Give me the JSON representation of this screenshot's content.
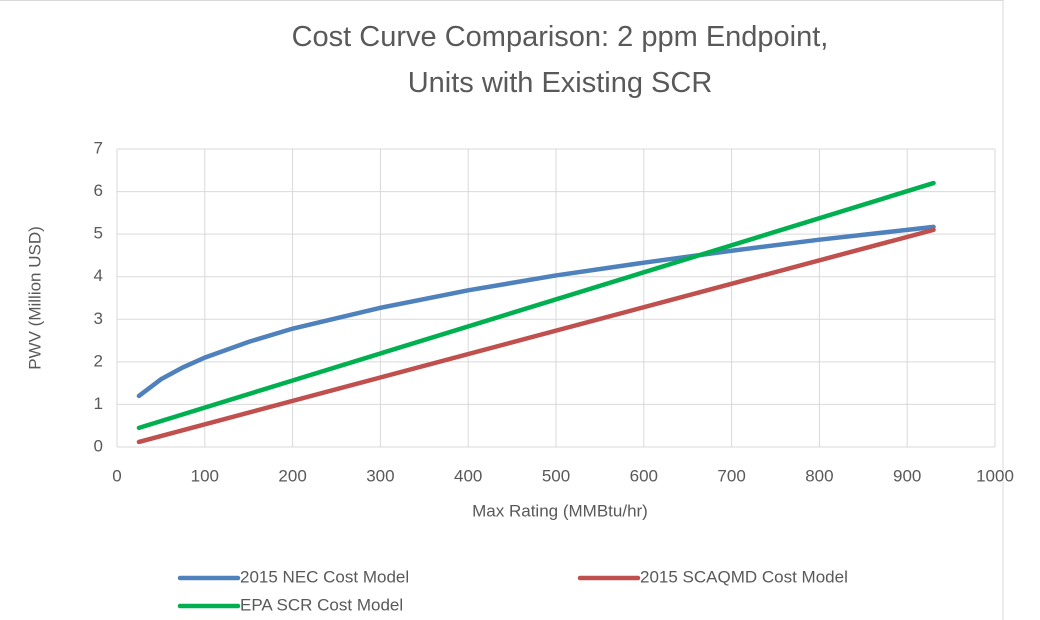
{
  "chart_data": {
    "type": "line",
    "title": "Cost Curve Comparison: 2 ppm Endpoint, Units with Existing SCR",
    "x_label": "Max Rating (MMBtu/hr)",
    "y_label": "PWV (Million USD)",
    "xlim": [
      0,
      1000
    ],
    "xticks": [
      0,
      100,
      200,
      300,
      400,
      500,
      600,
      700,
      800,
      900,
      1000
    ],
    "ylim": [
      0,
      7
    ],
    "yticks": [
      0,
      1,
      2,
      3,
      4,
      5,
      6,
      7
    ],
    "grid": true,
    "legend": "bottom",
    "series": [
      {
        "name": "2015 NEC Cost Model",
        "color": "#4f81bd",
        "x": [
          25,
          50,
          75,
          100,
          150,
          200,
          300,
          400,
          500,
          600,
          700,
          800,
          900,
          930
        ],
        "values": [
          1.2,
          1.59,
          1.87,
          2.1,
          2.47,
          2.78,
          3.27,
          3.68,
          4.03,
          4.33,
          4.61,
          4.87,
          5.1,
          5.17
        ]
      },
      {
        "name": "2015 SCAQMD Cost Model",
        "color": "#c0504d",
        "x": [
          25,
          930
        ],
        "values": [
          0.12,
          5.1
        ]
      },
      {
        "name": "EPA SCR Cost Model",
        "color": "#00b050",
        "x": [
          25,
          930
        ],
        "values": [
          0.45,
          6.2
        ]
      }
    ]
  }
}
